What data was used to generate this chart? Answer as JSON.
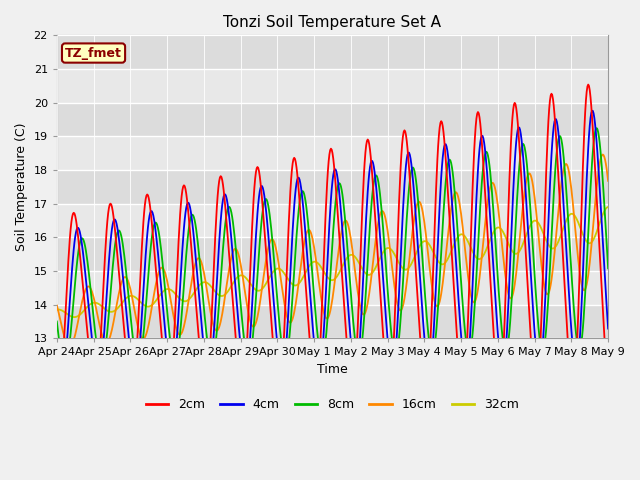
{
  "title": "Tonzi Soil Temperature Set A",
  "xlabel": "Time",
  "ylabel": "Soil Temperature (C)",
  "ylim": [
    13.0,
    22.0
  ],
  "yticks": [
    13.0,
    14.0,
    15.0,
    16.0,
    17.0,
    18.0,
    19.0,
    20.0,
    21.0,
    22.0
  ],
  "xtick_labels": [
    "Apr 24",
    "Apr 25",
    "Apr 26",
    "Apr 27",
    "Apr 28",
    "Apr 29",
    "Apr 30",
    "May 1",
    "May 2",
    "May 3",
    "May 4",
    "May 5",
    "May 6",
    "May 7",
    "May 8",
    "May 9"
  ],
  "annotation_text": "TZ_fmet",
  "color_2cm": "#FF0000",
  "color_4cm": "#0000EE",
  "color_8cm": "#00BB00",
  "color_16cm": "#FF8800",
  "color_32cm": "#CCCC00",
  "bg_color": "#E8E8E8",
  "fig_bg_color": "#F0F0F0",
  "grid_color": "#FFFFFF",
  "band_colors": [
    "#DCDCDC",
    "#E8E8E8"
  ],
  "n_days": 15
}
